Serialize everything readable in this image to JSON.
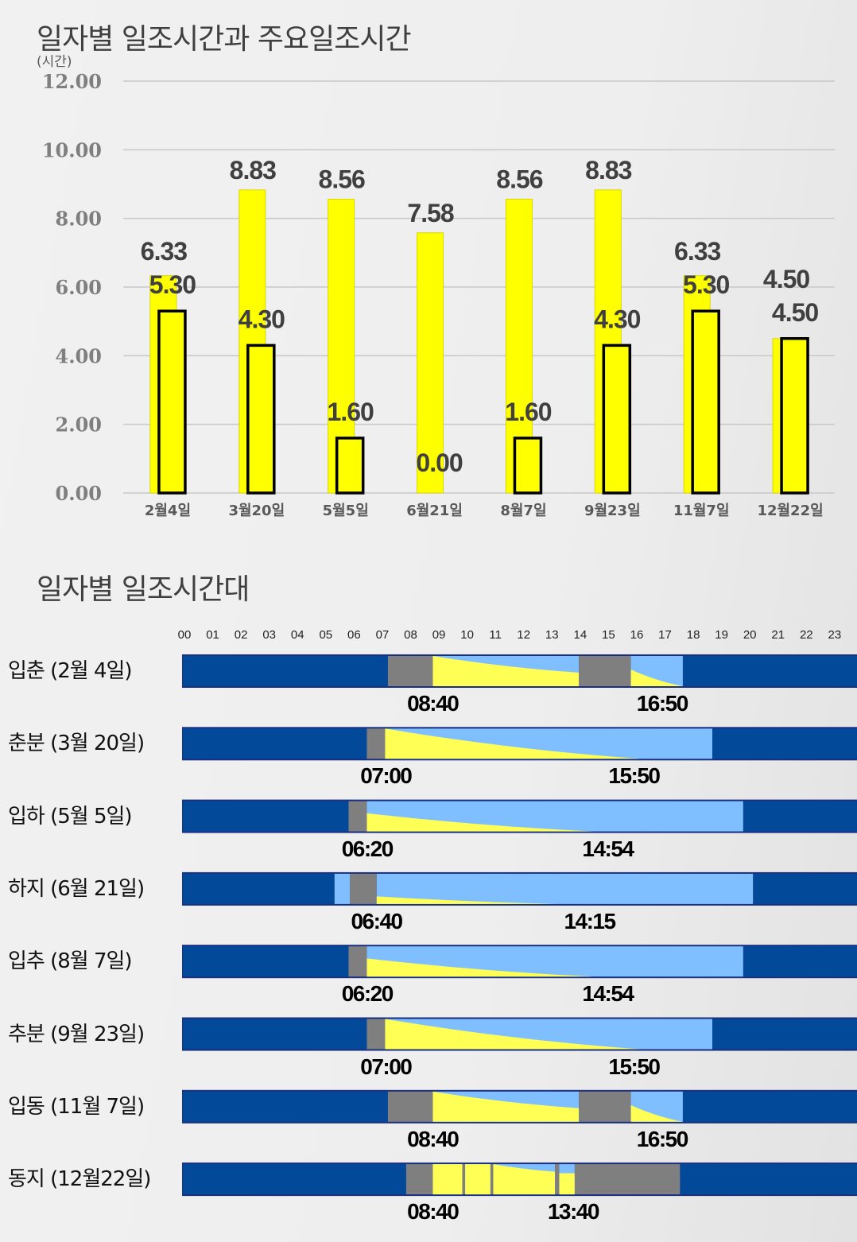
{
  "chart_title": "일자별 일조시간과 주요일조시간",
  "timeline_title": "일자별 일조시간대",
  "chart_data": {
    "type": "bar",
    "title": "일자별 일조시간과 주요일조시간",
    "ylabel": "(시간)",
    "xlabel": "",
    "ylim": [
      0,
      12
    ],
    "yticks": [
      "0.00",
      "2.00",
      "4.00",
      "6.00",
      "8.00",
      "10.00",
      "12.00"
    ],
    "categories": [
      "2월4일",
      "3월20일",
      "5월5일",
      "6월21일",
      "8월7일",
      "9월23일",
      "11월7일",
      "12월22일"
    ],
    "series": [
      {
        "name": "일조시간",
        "values": [
          6.33,
          8.83,
          8.56,
          7.58,
          8.56,
          8.83,
          6.33,
          4.5
        ],
        "labels": [
          "6.33",
          "8.83",
          "8.56",
          "7.58",
          "8.56",
          "8.83",
          "6.33",
          "4.50"
        ],
        "color": "#ffff00"
      },
      {
        "name": "주요일조시간",
        "values": [
          5.3,
          4.3,
          1.6,
          0.0,
          1.6,
          4.3,
          5.3,
          4.5
        ],
        "labels": [
          "5.30",
          "4.30",
          "1.60",
          "0.00",
          "1.60",
          "4.30",
          "5.30",
          "4.50"
        ],
        "color": "#ffff00"
      }
    ],
    "grid": true
  },
  "timeline": {
    "hours": [
      "00",
      "01",
      "02",
      "03",
      "04",
      "05",
      "06",
      "07",
      "08",
      "09",
      "10",
      "11",
      "12",
      "13",
      "14",
      "15",
      "16",
      "17",
      "18",
      "19",
      "20",
      "21",
      "22",
      "23"
    ],
    "colors": {
      "night": "#024a99",
      "gray": "#7f7f7f",
      "sun": "#ffff55",
      "sky": "#80bfff"
    },
    "rows": [
      {
        "label": "입춘 (2월 4일)",
        "start": "08:40",
        "end": "16:50",
        "segments": [
          [
            0,
            7.3,
            "night"
          ],
          [
            7.3,
            8.9,
            "gray"
          ],
          [
            8.9,
            14.1,
            "sun",
            1,
            0.45
          ],
          [
            14.1,
            15.95,
            "gray"
          ],
          [
            15.95,
            17.8,
            "sky",
            0.55,
            0
          ],
          [
            17.8,
            24,
            "night"
          ]
        ]
      },
      {
        "label": "춘분 (3월 20일)",
        "start": "07:00",
        "end": "15:50",
        "segments": [
          [
            0,
            6.55,
            "night"
          ],
          [
            6.55,
            7.2,
            "gray"
          ],
          [
            7.2,
            18.85,
            "sun",
            1,
            0,
            0.78
          ],
          [
            18.85,
            24,
            "night"
          ]
        ]
      },
      {
        "label": "입하 (5월 5일)",
        "start": "06:20",
        "end": "14:54",
        "segments": [
          [
            0,
            5.9,
            "night"
          ],
          [
            5.9,
            6.55,
            "gray"
          ],
          [
            6.55,
            19.95,
            "sun",
            0.6,
            0,
            0.6
          ],
          [
            19.95,
            24,
            "night"
          ]
        ]
      },
      {
        "label": "하지 (6월 21일)",
        "start": "06:40",
        "end": "14:15",
        "segments": [
          [
            0,
            5.4,
            "night"
          ],
          [
            5.4,
            5.95,
            "sky",
            0,
            0
          ],
          [
            5.95,
            6.9,
            "gray"
          ],
          [
            6.9,
            20.3,
            "sun",
            0.25,
            0,
            0.48
          ],
          [
            20.3,
            24,
            "night"
          ]
        ]
      },
      {
        "label": "입추 (8월 7일)",
        "start": "06:20",
        "end": "14:54",
        "segments": [
          [
            0,
            5.9,
            "night"
          ],
          [
            5.9,
            6.55,
            "gray"
          ],
          [
            6.55,
            19.95,
            "sun",
            0.6,
            0,
            0.6
          ],
          [
            19.95,
            24,
            "night"
          ]
        ]
      },
      {
        "label": "추분 (9월 23일)",
        "start": "07:00",
        "end": "15:50",
        "segments": [
          [
            0,
            6.55,
            "night"
          ],
          [
            6.55,
            7.2,
            "gray"
          ],
          [
            7.2,
            18.85,
            "sun",
            1,
            0,
            0.78
          ],
          [
            18.85,
            24,
            "night"
          ]
        ]
      },
      {
        "label": "입동 (11월 7일)",
        "start": "08:40",
        "end": "16:50",
        "segments": [
          [
            0,
            7.3,
            "night"
          ],
          [
            7.3,
            8.9,
            "gray"
          ],
          [
            8.9,
            14.1,
            "sun",
            1,
            0.45
          ],
          [
            14.1,
            15.95,
            "gray"
          ],
          [
            15.95,
            17.8,
            "sky",
            0.55,
            0
          ],
          [
            17.8,
            24,
            "night"
          ]
        ]
      },
      {
        "label": "동지 (12월22일)",
        "start": "08:40",
        "end": "13:40",
        "segments": [
          [
            0,
            7.95,
            "night"
          ],
          [
            7.95,
            8.9,
            "gray"
          ],
          [
            8.9,
            9.95,
            "sun",
            1,
            1
          ],
          [
            9.95,
            10.05,
            "gray"
          ],
          [
            10.05,
            10.95,
            "sun",
            1,
            1
          ],
          [
            10.95,
            11.05,
            "gray"
          ],
          [
            11.05,
            13.25,
            "sun",
            1,
            0.75
          ],
          [
            13.25,
            13.4,
            "gray"
          ],
          [
            13.4,
            13.95,
            "sun",
            0.7,
            0.7
          ],
          [
            13.95,
            17.7,
            "gray"
          ],
          [
            17.7,
            24,
            "night"
          ]
        ]
      }
    ]
  }
}
